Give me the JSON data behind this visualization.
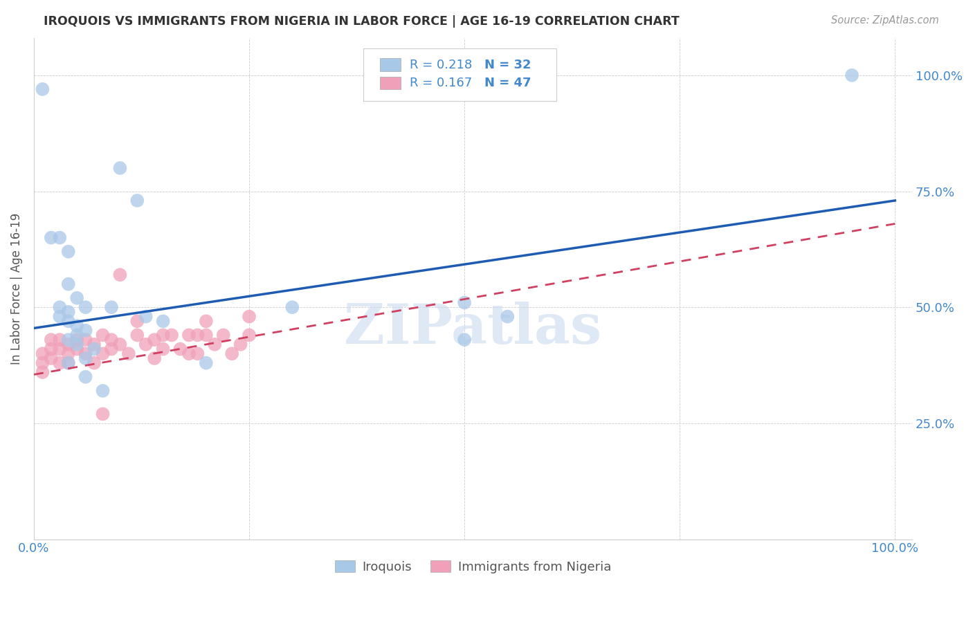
{
  "title": "IROQUOIS VS IMMIGRANTS FROM NIGERIA IN LABOR FORCE | AGE 16-19 CORRELATION CHART",
  "source": "Source: ZipAtlas.com",
  "ylabel": "In Labor Force | Age 16-19",
  "x_ticks": [
    0.0,
    0.25,
    0.5,
    0.75,
    1.0
  ],
  "x_tick_labels": [
    "0.0%",
    "",
    "",
    "",
    "100.0%"
  ],
  "y_ticks": [
    0.0,
    0.25,
    0.5,
    0.75,
    1.0
  ],
  "y_tick_labels_right": [
    "",
    "25.0%",
    "50.0%",
    "75.0%",
    "100.0%"
  ],
  "blue_color": "#A8C8E8",
  "blue_line_color": "#1E5CB3",
  "pink_color": "#F0A0B8",
  "pink_line_color": "#D04060",
  "watermark": "ZIPatlas",
  "legend_R1": "0.218",
  "legend_N1": "32",
  "legend_R2": "0.167",
  "legend_N2": "47",
  "blue_scatter_x": [
    0.01,
    0.1,
    0.12,
    0.02,
    0.03,
    0.04,
    0.04,
    0.05,
    0.06,
    0.03,
    0.04,
    0.03,
    0.04,
    0.05,
    0.06,
    0.05,
    0.04,
    0.05,
    0.13,
    0.15,
    0.5,
    0.5,
    0.95,
    0.04,
    0.06,
    0.07,
    0.08,
    0.2,
    0.3,
    0.55,
    0.06,
    0.09
  ],
  "blue_scatter_y": [
    0.97,
    0.8,
    0.73,
    0.65,
    0.65,
    0.62,
    0.55,
    0.52,
    0.5,
    0.5,
    0.49,
    0.48,
    0.47,
    0.46,
    0.45,
    0.44,
    0.43,
    0.42,
    0.48,
    0.47,
    0.51,
    0.43,
    1.0,
    0.38,
    0.39,
    0.41,
    0.32,
    0.38,
    0.5,
    0.48,
    0.35,
    0.5
  ],
  "pink_scatter_x": [
    0.01,
    0.01,
    0.01,
    0.02,
    0.02,
    0.02,
    0.03,
    0.03,
    0.03,
    0.04,
    0.04,
    0.04,
    0.05,
    0.05,
    0.06,
    0.06,
    0.07,
    0.07,
    0.08,
    0.08,
    0.09,
    0.09,
    0.1,
    0.11,
    0.12,
    0.13,
    0.14,
    0.14,
    0.15,
    0.16,
    0.17,
    0.18,
    0.18,
    0.19,
    0.19,
    0.2,
    0.21,
    0.22,
    0.23,
    0.24,
    0.25,
    0.12,
    0.15,
    0.2,
    0.25,
    0.1,
    0.08
  ],
  "pink_scatter_y": [
    0.4,
    0.38,
    0.36,
    0.43,
    0.41,
    0.39,
    0.43,
    0.41,
    0.38,
    0.42,
    0.4,
    0.38,
    0.43,
    0.41,
    0.43,
    0.4,
    0.42,
    0.38,
    0.44,
    0.4,
    0.43,
    0.41,
    0.42,
    0.4,
    0.44,
    0.42,
    0.43,
    0.39,
    0.41,
    0.44,
    0.41,
    0.44,
    0.4,
    0.44,
    0.4,
    0.44,
    0.42,
    0.44,
    0.4,
    0.42,
    0.44,
    0.47,
    0.44,
    0.47,
    0.48,
    0.57,
    0.27
  ],
  "blue_line_x": [
    0.0,
    1.0
  ],
  "blue_line_y_start": 0.455,
  "blue_line_y_end": 0.73,
  "pink_line_x": [
    0.0,
    1.0
  ],
  "pink_line_y_start": 0.355,
  "pink_line_y_end": 0.68,
  "xlim": [
    0.0,
    1.02
  ],
  "ylim": [
    0.0,
    1.08
  ]
}
